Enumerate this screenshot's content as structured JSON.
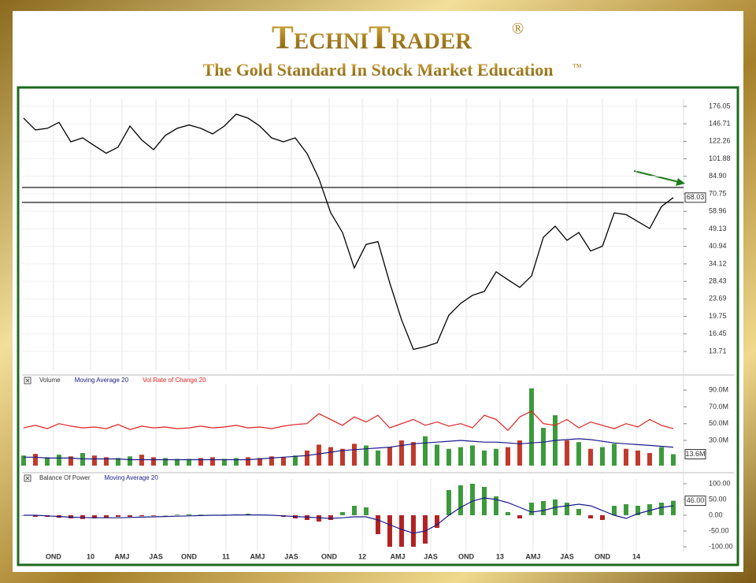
{
  "header": {
    "title": "TechniTrader",
    "registered": "®",
    "subtitle": "The Gold Standard In Stock Market Education",
    "trademark": "™"
  },
  "chart_data": [
    {
      "type": "line",
      "log_scale": true,
      "color": "#000000",
      "x": [
        0,
        1,
        2,
        3,
        4,
        5,
        6,
        7,
        8,
        9,
        10,
        11,
        12,
        13,
        14,
        15,
        16,
        17,
        18,
        19,
        20,
        21,
        22,
        23,
        24,
        25,
        26,
        27,
        28,
        29,
        30,
        31,
        32,
        33,
        34,
        35,
        36,
        37,
        38,
        39,
        40,
        41,
        42,
        43,
        44,
        45,
        46,
        47,
        48,
        49,
        50,
        51,
        52,
        53,
        54,
        55
      ],
      "values": [
        155.7,
        137.7,
        140,
        149,
        121.6,
        126.7,
        116.8,
        108,
        115,
        143.3,
        124,
        112,
        130,
        140,
        145,
        140,
        132,
        143.3,
        162.2,
        155.7,
        143.3,
        126.7,
        121.6,
        126.7,
        107.6,
        83,
        58.1,
        47.3,
        32.7,
        41.8,
        43,
        28,
        19,
        14,
        14.4,
        15,
        20,
        22.6,
        24.6,
        25.6,
        31.4,
        28.9,
        26.7,
        30.1,
        45,
        50.5,
        43.6,
        47.3,
        39,
        41,
        58,
        57,
        53,
        49.3,
        62,
        68.03
      ],
      "xlim": [
        -0.13,
        55.87
      ],
      "xticks": [
        {
          "value": 2.53,
          "label": "OND"
        },
        {
          "value": 5.67,
          "label": "10"
        },
        {
          "value": 8.33,
          "label": "AMJ"
        },
        {
          "value": 11.2,
          "label": "JAS"
        },
        {
          "value": 14,
          "label": "OND"
        },
        {
          "value": 17.13,
          "label": "11"
        },
        {
          "value": 19.8,
          "label": "AMJ"
        },
        {
          "value": 22.67,
          "label": "JAS"
        },
        {
          "value": 25.87,
          "label": "OND"
        },
        {
          "value": 28.67,
          "label": "12"
        },
        {
          "value": 31.67,
          "label": "AMJ"
        },
        {
          "value": 34.47,
          "label": "JAS"
        },
        {
          "value": 37.47,
          "label": "OND"
        },
        {
          "value": 40.33,
          "label": "13"
        },
        {
          "value": 43.13,
          "label": "AMJ"
        },
        {
          "value": 46,
          "label": "JAS"
        },
        {
          "value": 49,
          "label": "OND"
        },
        {
          "value": 51.87,
          "label": "14"
        }
      ],
      "ylim": [
        11.26,
        191
      ],
      "yticks": [
        176.05,
        146.71,
        122.26,
        101.88,
        {
          "value": 84.9,
          "label": "84.90"
        },
        70.75,
        58.96,
        49.13,
        40.94,
        34.12,
        28.43,
        23.69,
        19.75,
        16.45,
        13.71
      ],
      "hlines": [
        75.6,
        64.7
      ],
      "last_label": "68.03",
      "last_value": 68.03,
      "grid": true
    },
    {
      "type": "bar",
      "ylim": [
        0,
        96.7
      ],
      "yticks": [
        {
          "value": 90,
          "label": "90.0M"
        },
        {
          "value": 70,
          "label": "70.0M"
        },
        {
          "value": 50,
          "label": "50.0M"
        },
        {
          "value": 30,
          "label": "30.0M"
        }
      ],
      "last_label": "13.6M",
      "last_value": 13.6,
      "series": [
        {
          "name": "Volume",
          "type": "bar",
          "up_color": "#3c9a3c",
          "down_color": "#c0392b",
          "values": [
            12,
            14,
            10,
            13,
            11,
            15,
            12,
            10,
            9,
            11,
            13,
            10,
            9,
            8,
            8,
            9,
            10,
            8,
            9,
            10,
            9,
            11,
            10,
            12,
            18,
            25,
            22,
            20,
            26,
            24,
            18,
            22,
            30,
            28,
            35,
            25,
            20,
            22,
            24,
            18,
            20,
            22,
            30,
            92,
            45,
            60,
            30,
            28,
            20,
            22,
            26,
            20,
            18,
            15,
            22,
            13.6
          ]
        },
        {
          "name": "Moving Average 20",
          "type": "line",
          "color": "#1a1a8c",
          "values": [
            10,
            10,
            9,
            9,
            9,
            8,
            8,
            8,
            8,
            7,
            7,
            7,
            7,
            7,
            7,
            7,
            7,
            7,
            7,
            7,
            8,
            9,
            10,
            11,
            12,
            14,
            16,
            18,
            19,
            20,
            21,
            22,
            24,
            26,
            27,
            28,
            29,
            30,
            29,
            28,
            28,
            27,
            26,
            27,
            28,
            30,
            31,
            32,
            31,
            29,
            27,
            26,
            25,
            24,
            23,
            22
          ]
        },
        {
          "name": "Vol Rate of Change 20",
          "type": "line",
          "color": "#e02020",
          "values": [
            45,
            48,
            44,
            50,
            47,
            45,
            46,
            44,
            49,
            43,
            47,
            45,
            46,
            44,
            45,
            47,
            45,
            46,
            48,
            45,
            46,
            44,
            47,
            49,
            50,
            62,
            55,
            48,
            58,
            52,
            60,
            45,
            50,
            55,
            48,
            52,
            47,
            50,
            45,
            60,
            55,
            42,
            58,
            65,
            50,
            48,
            55,
            45,
            52,
            48,
            44,
            50,
            46,
            55,
            48,
            44
          ]
        }
      ]
    },
    {
      "type": "bar",
      "ylim": [
        -115,
        115
      ],
      "yticks": [
        {
          "value": 100,
          "label": "100.00"
        },
        {
          "value": 50,
          "label": "50.00"
        },
        {
          "value": 0,
          "label": "0.00"
        },
        {
          "value": -50,
          "label": "-50.00"
        },
        {
          "value": -100,
          "label": "-100.00"
        }
      ],
      "last_label": "46.00",
      "last_value": 46,
      "series": [
        {
          "name": "Balance Of Power",
          "type": "bar",
          "up_color": "#3c9a3c",
          "down_color": "#b22222",
          "values": [
            0,
            -5,
            -5,
            -8,
            -10,
            -12,
            -10,
            -8,
            -5,
            -5,
            -3,
            -2,
            0,
            2,
            3,
            2,
            0,
            2,
            3,
            5,
            2,
            0,
            -5,
            -10,
            -15,
            -20,
            -15,
            10,
            30,
            25,
            -60,
            -100,
            -100,
            -100,
            -90,
            -40,
            80,
            95,
            100,
            90,
            60,
            10,
            -10,
            40,
            45,
            50,
            40,
            20,
            -10,
            -15,
            30,
            35,
            30,
            35,
            40,
            46
          ]
        },
        {
          "name": "Moving Average 20",
          "type": "line",
          "color": "#1a1a8c",
          "values": [
            0,
            0,
            -2,
            -4,
            -6,
            -7,
            -8,
            -8,
            -8,
            -7,
            -6,
            -5,
            -4,
            -3,
            -2,
            -1,
            0,
            0,
            1,
            1,
            1,
            0,
            -2,
            -4,
            -6,
            -8,
            -10,
            -8,
            -5,
            -5,
            -15,
            -30,
            -45,
            -57,
            -50,
            -30,
            0,
            25,
            45,
            55,
            50,
            40,
            25,
            10,
            15,
            25,
            30,
            35,
            30,
            15,
            0,
            -10,
            5,
            15,
            25,
            30
          ]
        }
      ]
    }
  ]
}
